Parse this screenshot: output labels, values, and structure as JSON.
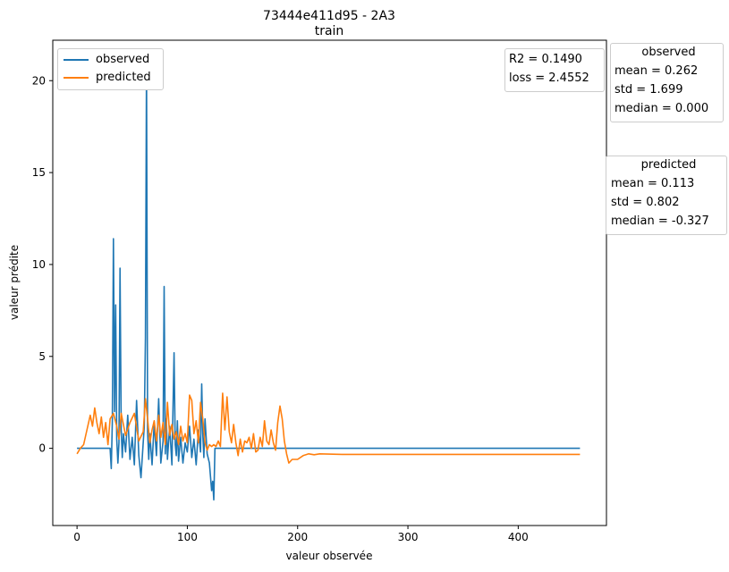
{
  "chart_data": {
    "type": "line",
    "title": "73444e411d95 - 2A3",
    "subtitle": "train",
    "xlabel": "valeur observée",
    "ylabel": "valeur prédite",
    "xlim": [
      -22,
      480
    ],
    "ylim": [
      -4.2,
      22.2
    ],
    "xticks": [
      0,
      100,
      200,
      300,
      400
    ],
    "yticks": [
      0,
      5,
      10,
      15,
      20
    ],
    "grid": false,
    "legend_position": "top-left",
    "series": [
      {
        "name": "observed",
        "color": "#1f77b4",
        "x": [
          0,
          10,
          20,
          30,
          31,
          32,
          33,
          34,
          35,
          36,
          37,
          38,
          39,
          40,
          41,
          42,
          44,
          46,
          48,
          50,
          52,
          54,
          56,
          58,
          60,
          61,
          62,
          63,
          64,
          65,
          66,
          68,
          70,
          72,
          74,
          76,
          78,
          79,
          80,
          81,
          82,
          84,
          86,
          88,
          89,
          90,
          91,
          92,
          94,
          96,
          98,
          100,
          102,
          104,
          106,
          108,
          110,
          112,
          113,
          114,
          115,
          116,
          118,
          120,
          122,
          123,
          124,
          125,
          205,
          456
        ],
        "y": [
          0,
          0,
          0,
          0,
          -1.1,
          1.5,
          11.4,
          2,
          7.8,
          0.5,
          -0.8,
          0.3,
          9.8,
          1,
          -0.5,
          0.8,
          -0.2,
          1.8,
          -0.6,
          0.6,
          -0.9,
          2.6,
          -0.4,
          -1.6,
          0.3,
          1.2,
          6,
          21,
          0.9,
          -0.6,
          0.8,
          -0.9,
          1.4,
          -0.4,
          2.7,
          -0.8,
          0.4,
          8.8,
          -0.3,
          1.6,
          -0.6,
          1.2,
          -0.9,
          5.2,
          0.2,
          -0.4,
          1.5,
          -0.7,
          0.6,
          -0.8,
          0.3,
          -0.2,
          1.2,
          -0.5,
          0.5,
          -0.9,
          1,
          -0.2,
          3.5,
          0.8,
          -0.5,
          1.6,
          -0.3,
          -0.8,
          -2.3,
          -1.8,
          -2.8,
          0,
          0,
          0
        ]
      },
      {
        "name": "predicted",
        "color": "#ff7f0e",
        "x": [
          0,
          3,
          6,
          9,
          12,
          14,
          16,
          18,
          20,
          22,
          24,
          26,
          28,
          30,
          33,
          36,
          38,
          40,
          44,
          48,
          52,
          56,
          60,
          62,
          64,
          66,
          68,
          70,
          72,
          74,
          76,
          78,
          80,
          82,
          84,
          86,
          88,
          90,
          92,
          94,
          96,
          98,
          100,
          102,
          104,
          106,
          108,
          110,
          112,
          114,
          116,
          118,
          120,
          122,
          124,
          126,
          128,
          130,
          132,
          134,
          136,
          138,
          140,
          142,
          144,
          146,
          148,
          150,
          152,
          154,
          156,
          158,
          160,
          162,
          164,
          166,
          168,
          170,
          172,
          174,
          176,
          178,
          180,
          182,
          184,
          186,
          188,
          190,
          192,
          195,
          200,
          205,
          210,
          215,
          220,
          240,
          300,
          456
        ],
        "y": [
          -0.3,
          0,
          0.2,
          1,
          1.8,
          1.2,
          2.2,
          1.4,
          0.8,
          1.7,
          0.6,
          1.4,
          0.2,
          1.6,
          1.9,
          1.2,
          0.5,
          1.9,
          0.7,
          1.4,
          1.9,
          0.4,
          0.9,
          2.7,
          1.6,
          0.3,
          1,
          1.5,
          0.4,
          1.8,
          0.6,
          1.4,
          0.2,
          2.5,
          0.7,
          1.3,
          0.5,
          0.9,
          0.2,
          1.2,
          0.4,
          0.8,
          0.3,
          2.9,
          2.6,
          0.8,
          1.5,
          0.3,
          2.5,
          1.6,
          0.3,
          -0.1,
          0.2,
          0.1,
          0.2,
          0.1,
          0.4,
          0.1,
          3,
          1,
          2.8,
          0.9,
          0.3,
          1.3,
          0.3,
          -0.4,
          0.5,
          -0.2,
          0.4,
          0.3,
          0.6,
          0,
          0.8,
          -0.2,
          -0.1,
          0.6,
          0.1,
          1.5,
          0.4,
          0.2,
          1,
          0.3,
          -0.1,
          1.4,
          2.3,
          1.6,
          0.4,
          -0.3,
          -0.8,
          -0.6,
          -0.6,
          -0.4,
          -0.3,
          -0.35,
          -0.3,
          -0.33,
          -0.33,
          -0.33
        ]
      }
    ],
    "metrics": [
      "R2 = 0.1490",
      "loss = 2.4552"
    ],
    "stats_boxes": [
      {
        "title": "observed",
        "lines": [
          "mean = 0.262",
          "std = 1.699",
          "median = 0.000"
        ]
      },
      {
        "title": "predicted",
        "lines": [
          "mean = 0.113",
          "std = 0.802",
          "median = -0.327"
        ]
      }
    ]
  }
}
